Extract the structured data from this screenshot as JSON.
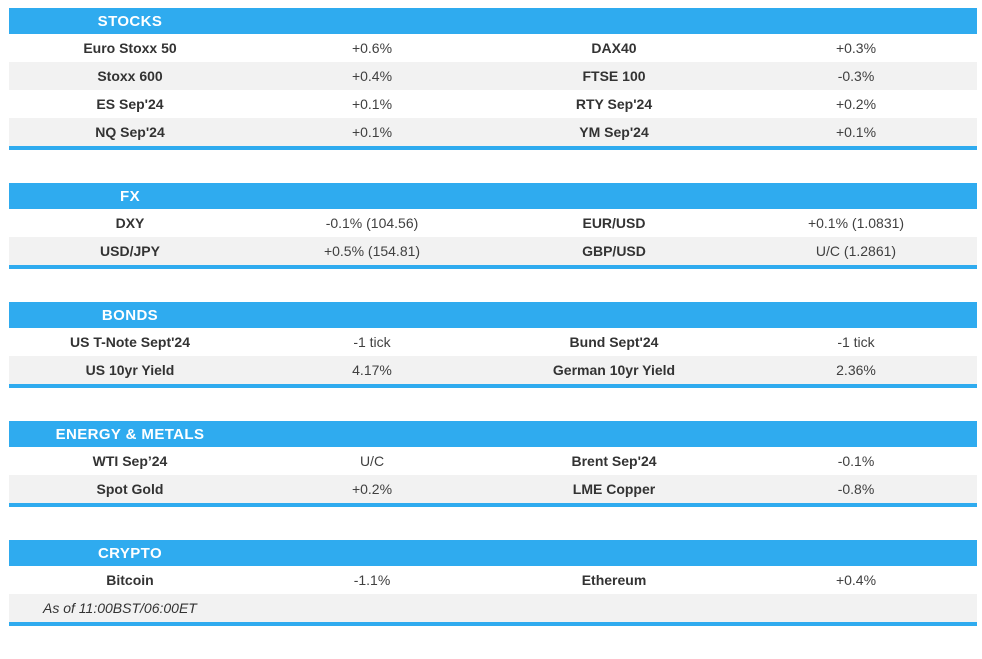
{
  "theme": {
    "accent_blue": "#2FABEF",
    "alt_row_gray": "#F2F2F2",
    "header_text": "#FFFFFF",
    "name_text": "#333333",
    "value_text": "#404040"
  },
  "sections": [
    {
      "title": "STOCKS",
      "rows": [
        {
          "left": {
            "name": "Euro Stoxx 50",
            "value": "+0.6%"
          },
          "right": {
            "name": "DAX40",
            "value": "+0.3%"
          }
        },
        {
          "left": {
            "name": "Stoxx 600",
            "value": "+0.4%"
          },
          "right": {
            "name": "FTSE 100",
            "value": "-0.3%"
          }
        },
        {
          "left": {
            "name": "ES Sep'24",
            "value": "+0.1%"
          },
          "right": {
            "name": "RTY Sep'24",
            "value": "+0.2%"
          }
        },
        {
          "left": {
            "name": "NQ Sep'24",
            "value": "+0.1%"
          },
          "right": {
            "name": "YM Sep'24",
            "value": "+0.1%"
          }
        }
      ]
    },
    {
      "title": "FX",
      "rows": [
        {
          "left": {
            "name": "DXY",
            "value": "-0.1% (104.56)"
          },
          "right": {
            "name": "EUR/USD",
            "value": "+0.1% (1.0831)"
          }
        },
        {
          "left": {
            "name": "USD/JPY",
            "value": "+0.5% (154.81)"
          },
          "right": {
            "name": "GBP/USD",
            "value": "U/C (1.2861)"
          }
        }
      ]
    },
    {
      "title": "BONDS",
      "rows": [
        {
          "left": {
            "name": "US T-Note Sept'24",
            "value": "-1 tick"
          },
          "right": {
            "name": "Bund Sept'24",
            "value": "-1 tick"
          }
        },
        {
          "left": {
            "name": "US 10yr Yield",
            "value": "4.17%"
          },
          "right": {
            "name": "German 10yr Yield",
            "value": "2.36%"
          }
        }
      ]
    },
    {
      "title": "ENERGY & METALS",
      "rows": [
        {
          "left": {
            "name": "WTI Sep’24",
            "value": "U/C"
          },
          "right": {
            "name": "Brent Sep'24",
            "value": "-0.1%"
          }
        },
        {
          "left": {
            "name": "Spot Gold",
            "value": "+0.2%"
          },
          "right": {
            "name": "LME Copper",
            "value": "-0.8%"
          }
        }
      ]
    },
    {
      "title": "CRYPTO",
      "rows": [
        {
          "left": {
            "name": "Bitcoin",
            "value": "-1.1%"
          },
          "right": {
            "name": "Ethereum",
            "value": "+0.4%"
          }
        }
      ]
    }
  ],
  "footer": {
    "as_of": "As of 11:00BST/06:00ET"
  }
}
